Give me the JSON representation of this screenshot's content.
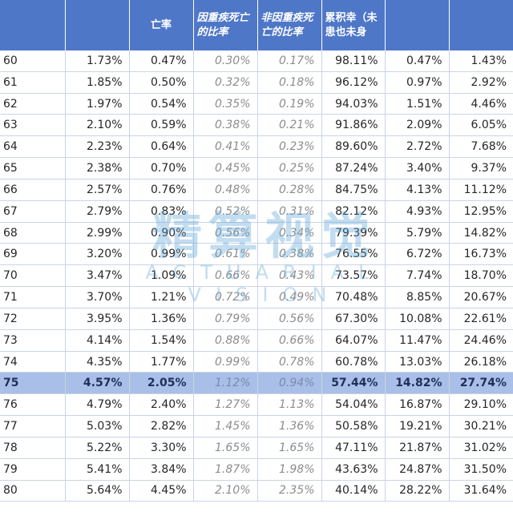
{
  "headers": [
    "",
    "",
    "亡率",
    "因重疾死亡的比率",
    "非因重疾死亡的比率",
    "累积幸（未患也未身",
    "",
    ""
  ],
  "rows": [
    [
      "60",
      "1.73%",
      "0.47%",
      "0.30%",
      "0.17%",
      "98.11%",
      "0.47%",
      "1.43%"
    ],
    [
      "61",
      "1.85%",
      "0.50%",
      "0.32%",
      "0.18%",
      "96.12%",
      "0.97%",
      "2.92%"
    ],
    [
      "62",
      "1.97%",
      "0.54%",
      "0.35%",
      "0.19%",
      "94.03%",
      "1.51%",
      "4.46%"
    ],
    [
      "63",
      "2.10%",
      "0.59%",
      "0.38%",
      "0.21%",
      "91.86%",
      "2.09%",
      "6.05%"
    ],
    [
      "64",
      "2.23%",
      "0.64%",
      "0.41%",
      "0.23%",
      "89.60%",
      "2.72%",
      "7.68%"
    ],
    [
      "65",
      "2.38%",
      "0.70%",
      "0.45%",
      "0.25%",
      "87.24%",
      "3.40%",
      "9.37%"
    ],
    [
      "66",
      "2.57%",
      "0.76%",
      "0.48%",
      "0.28%",
      "84.75%",
      "4.13%",
      "11.12%"
    ],
    [
      "67",
      "2.79%",
      "0.83%",
      "0.52%",
      "0.31%",
      "82.12%",
      "4.93%",
      "12.95%"
    ],
    [
      "68",
      "2.99%",
      "0.90%",
      "0.56%",
      "0.34%",
      "79.39%",
      "5.79%",
      "14.82%"
    ],
    [
      "69",
      "3.20%",
      "0.99%",
      "0.61%",
      "0.38%",
      "76.55%",
      "6.72%",
      "16.73%"
    ],
    [
      "70",
      "3.47%",
      "1.09%",
      "0.66%",
      "0.43%",
      "73.57%",
      "7.74%",
      "18.70%"
    ],
    [
      "71",
      "3.70%",
      "1.21%",
      "0.72%",
      "0.49%",
      "70.48%",
      "8.85%",
      "20.67%"
    ],
    [
      "72",
      "3.95%",
      "1.36%",
      "0.79%",
      "0.56%",
      "67.30%",
      "10.08%",
      "22.61%"
    ],
    [
      "73",
      "4.14%",
      "1.54%",
      "0.88%",
      "0.66%",
      "64.07%",
      "11.47%",
      "24.46%"
    ],
    [
      "74",
      "4.35%",
      "1.77%",
      "0.99%",
      "0.78%",
      "60.78%",
      "13.03%",
      "26.18%"
    ],
    [
      "75",
      "4.57%",
      "2.05%",
      "1.12%",
      "0.94%",
      "57.44%",
      "14.82%",
      "27.74%"
    ],
    [
      "76",
      "4.79%",
      "2.40%",
      "1.27%",
      "1.13%",
      "54.04%",
      "16.87%",
      "29.10%"
    ],
    [
      "77",
      "5.03%",
      "2.82%",
      "1.45%",
      "1.36%",
      "50.58%",
      "19.21%",
      "30.21%"
    ],
    [
      "78",
      "5.22%",
      "3.30%",
      "1.65%",
      "1.65%",
      "47.11%",
      "21.87%",
      "31.02%"
    ],
    [
      "79",
      "5.41%",
      "3.84%",
      "1.87%",
      "1.98%",
      "43.63%",
      "24.87%",
      "31.50%"
    ],
    [
      "80",
      "5.64%",
      "4.45%",
      "2.10%",
      "2.35%",
      "40.14%",
      "28.22%",
      "31.64%"
    ]
  ],
  "highlight_age": "75",
  "watermark": {
    "cn": "精算视觉",
    "en": "ACTUARIAL VISION"
  },
  "colors": {
    "header_bg": "#4f77c8",
    "highlight_bg": "#a9bfe8",
    "italic_text": "#8c8c8c",
    "watermark": "#5fa5d7"
  }
}
